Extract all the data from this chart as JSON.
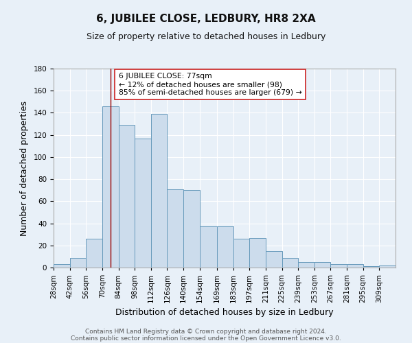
{
  "title": "6, JUBILEE CLOSE, LEDBURY, HR8 2XA",
  "subtitle": "Size of property relative to detached houses in Ledbury",
  "xlabel": "Distribution of detached houses by size in Ledbury",
  "ylabel": "Number of detached properties",
  "bin_labels": [
    "28sqm",
    "42sqm",
    "56sqm",
    "70sqm",
    "84sqm",
    "98sqm",
    "112sqm",
    "126sqm",
    "140sqm",
    "154sqm",
    "169sqm",
    "183sqm",
    "197sqm",
    "211sqm",
    "225sqm",
    "239sqm",
    "253sqm",
    "267sqm",
    "281sqm",
    "295sqm",
    "309sqm"
  ],
  "bar_heights": [
    3,
    9,
    26,
    146,
    129,
    117,
    139,
    71,
    70,
    37,
    37,
    26,
    27,
    15,
    9,
    5,
    5,
    3,
    3,
    1,
    2
  ],
  "ylim": [
    0,
    180
  ],
  "yticks": [
    0,
    20,
    40,
    60,
    80,
    100,
    120,
    140,
    160,
    180
  ],
  "bar_color": "#ccdcec",
  "bar_edge_color": "#6699bb",
  "vline_x": 77,
  "vline_color": "#990000",
  "annotation_text": "6 JUBILEE CLOSE: 77sqm\n← 12% of detached houses are smaller (98)\n85% of semi-detached houses are larger (679) →",
  "annotation_box_color": "#ffffff",
  "annotation_box_edge": "#cc2222",
  "footer1": "Contains HM Land Registry data © Crown copyright and database right 2024.",
  "footer2": "Contains public sector information licensed under the Open Government Licence v3.0.",
  "bg_color": "#e8f0f8",
  "plot_bg_color": "#e8f0f8",
  "title_fontsize": 11,
  "subtitle_fontsize": 9,
  "xlabel_fontsize": 9,
  "ylabel_fontsize": 9,
  "tick_fontsize": 7.5,
  "footer_fontsize": 6.5
}
